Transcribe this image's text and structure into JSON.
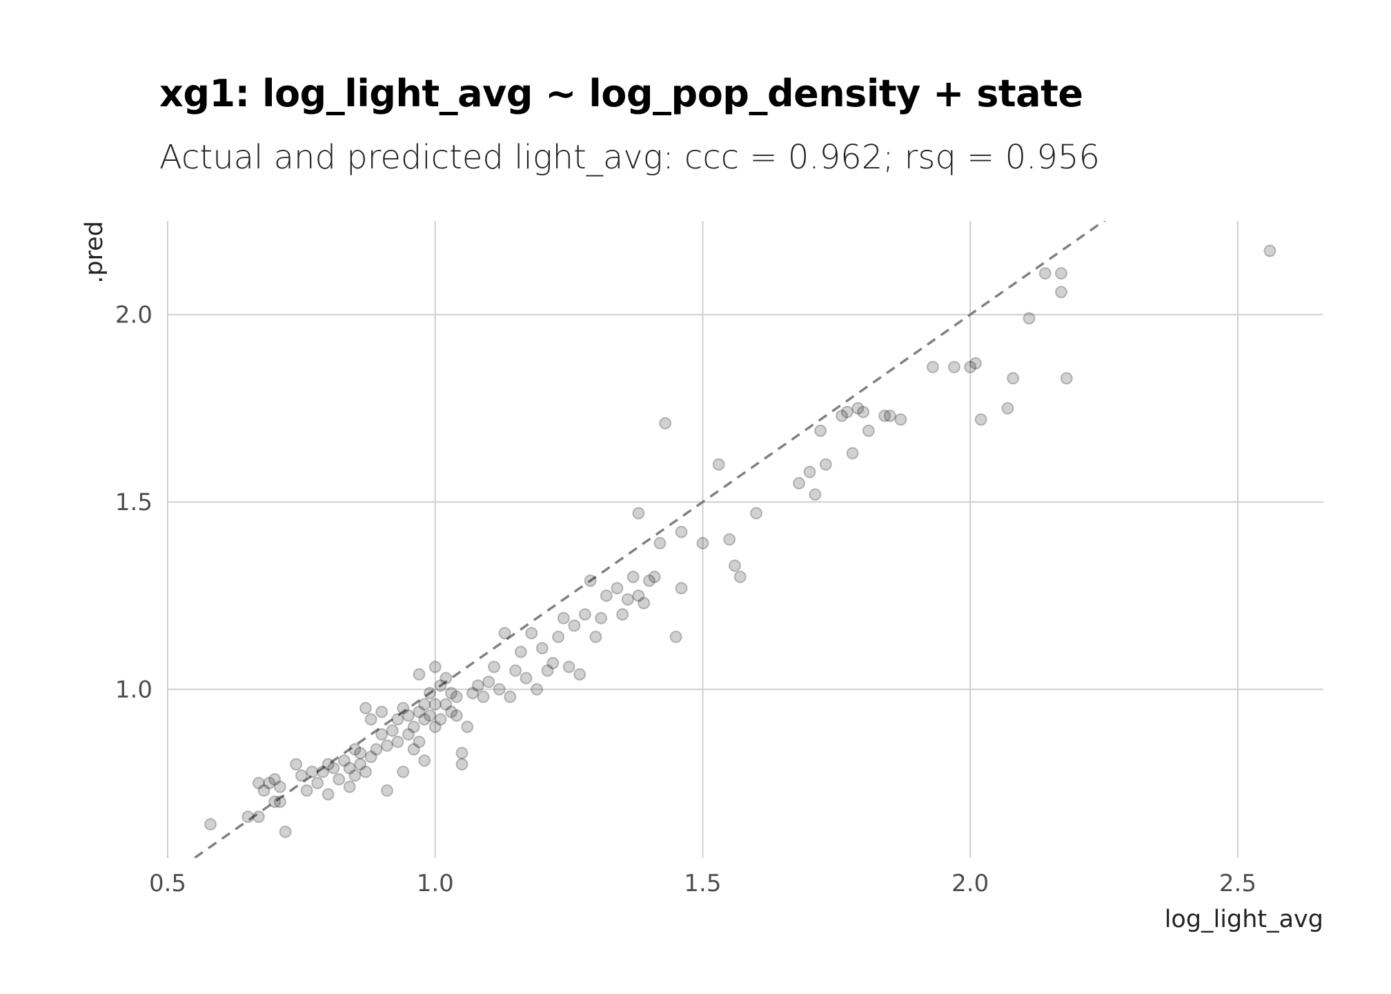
{
  "chart_data": {
    "type": "scatter",
    "title": "xg1: log_light_avg ~ log_pop_density + state",
    "subtitle": "Actual and predicted light_avg: ccc = 0.962; rsq = 0.956",
    "xlabel": "log_light_avg",
    "ylabel": ".pred",
    "xlim": [
      0.5,
      2.66
    ],
    "ylim": [
      0.55,
      2.25
    ],
    "x_ticks": [
      "0.5",
      "1.0",
      "1.5",
      "2.0",
      "2.5"
    ],
    "y_ticks": [
      "1.0",
      "1.5",
      "2.0"
    ],
    "grid": true,
    "reference_line": {
      "slope": 1,
      "intercept": 0,
      "style": "dashed",
      "color": "#808080"
    },
    "point_color": "#000000",
    "point_alpha": 0.18,
    "points": [
      [
        0.58,
        0.64
      ],
      [
        0.65,
        0.66
      ],
      [
        0.67,
        0.75
      ],
      [
        0.67,
        0.66
      ],
      [
        0.68,
        0.73
      ],
      [
        0.69,
        0.75
      ],
      [
        0.7,
        0.76
      ],
      [
        0.7,
        0.7
      ],
      [
        0.71,
        0.74
      ],
      [
        0.71,
        0.7
      ],
      [
        0.72,
        0.62
      ],
      [
        0.74,
        0.8
      ],
      [
        0.75,
        0.77
      ],
      [
        0.76,
        0.73
      ],
      [
        0.77,
        0.78
      ],
      [
        0.78,
        0.75
      ],
      [
        0.79,
        0.78
      ],
      [
        0.8,
        0.8
      ],
      [
        0.8,
        0.72
      ],
      [
        0.81,
        0.79
      ],
      [
        0.82,
        0.76
      ],
      [
        0.83,
        0.81
      ],
      [
        0.84,
        0.79
      ],
      [
        0.84,
        0.74
      ],
      [
        0.85,
        0.77
      ],
      [
        0.85,
        0.84
      ],
      [
        0.86,
        0.83
      ],
      [
        0.86,
        0.8
      ],
      [
        0.87,
        0.78
      ],
      [
        0.87,
        0.95
      ],
      [
        0.88,
        0.92
      ],
      [
        0.88,
        0.82
      ],
      [
        0.89,
        0.84
      ],
      [
        0.9,
        0.94
      ],
      [
        0.9,
        0.88
      ],
      [
        0.91,
        0.73
      ],
      [
        0.91,
        0.85
      ],
      [
        0.92,
        0.89
      ],
      [
        0.93,
        0.92
      ],
      [
        0.93,
        0.86
      ],
      [
        0.94,
        0.95
      ],
      [
        0.94,
        0.78
      ],
      [
        0.95,
        0.88
      ],
      [
        0.95,
        0.93
      ],
      [
        0.96,
        0.9
      ],
      [
        0.96,
        0.84
      ],
      [
        0.97,
        0.94
      ],
      [
        0.97,
        0.86
      ],
      [
        0.97,
        1.04
      ],
      [
        0.98,
        0.92
      ],
      [
        0.98,
        0.96
      ],
      [
        0.98,
        0.81
      ],
      [
        0.99,
        0.99
      ],
      [
        0.99,
        0.93
      ],
      [
        1.0,
        1.06
      ],
      [
        1.0,
        0.9
      ],
      [
        1.0,
        0.96
      ],
      [
        1.01,
        1.01
      ],
      [
        1.01,
        0.92
      ],
      [
        1.02,
        0.96
      ],
      [
        1.02,
        1.03
      ],
      [
        1.03,
        0.94
      ],
      [
        1.03,
        0.99
      ],
      [
        1.04,
        0.93
      ],
      [
        1.04,
        0.98
      ],
      [
        1.05,
        0.8
      ],
      [
        1.05,
        0.83
      ],
      [
        1.06,
        0.9
      ],
      [
        1.07,
        0.99
      ],
      [
        1.08,
        1.01
      ],
      [
        1.09,
        0.98
      ],
      [
        1.1,
        1.02
      ],
      [
        1.11,
        1.06
      ],
      [
        1.12,
        1.0
      ],
      [
        1.13,
        1.15
      ],
      [
        1.14,
        0.98
      ],
      [
        1.15,
        1.05
      ],
      [
        1.16,
        1.1
      ],
      [
        1.17,
        1.03
      ],
      [
        1.18,
        1.15
      ],
      [
        1.19,
        1.0
      ],
      [
        1.2,
        1.11
      ],
      [
        1.21,
        1.05
      ],
      [
        1.22,
        1.07
      ],
      [
        1.23,
        1.14
      ],
      [
        1.24,
        1.19
      ],
      [
        1.25,
        1.06
      ],
      [
        1.26,
        1.17
      ],
      [
        1.27,
        1.04
      ],
      [
        1.28,
        1.2
      ],
      [
        1.29,
        1.29
      ],
      [
        1.3,
        1.14
      ],
      [
        1.31,
        1.19
      ],
      [
        1.32,
        1.25
      ],
      [
        1.34,
        1.27
      ],
      [
        1.35,
        1.2
      ],
      [
        1.36,
        1.24
      ],
      [
        1.37,
        1.3
      ],
      [
        1.38,
        1.25
      ],
      [
        1.38,
        1.47
      ],
      [
        1.39,
        1.23
      ],
      [
        1.4,
        1.29
      ],
      [
        1.41,
        1.3
      ],
      [
        1.42,
        1.39
      ],
      [
        1.43,
        1.71
      ],
      [
        1.45,
        1.14
      ],
      [
        1.46,
        1.27
      ],
      [
        1.46,
        1.42
      ],
      [
        1.5,
        1.39
      ],
      [
        1.53,
        1.6
      ],
      [
        1.55,
        1.4
      ],
      [
        1.56,
        1.33
      ],
      [
        1.57,
        1.3
      ],
      [
        1.6,
        1.47
      ],
      [
        1.68,
        1.55
      ],
      [
        1.7,
        1.58
      ],
      [
        1.71,
        1.52
      ],
      [
        1.72,
        1.69
      ],
      [
        1.73,
        1.6
      ],
      [
        1.76,
        1.73
      ],
      [
        1.77,
        1.74
      ],
      [
        1.78,
        1.63
      ],
      [
        1.79,
        1.75
      ],
      [
        1.8,
        1.74
      ],
      [
        1.81,
        1.69
      ],
      [
        1.84,
        1.73
      ],
      [
        1.85,
        1.73
      ],
      [
        1.87,
        1.72
      ],
      [
        1.93,
        1.86
      ],
      [
        1.97,
        1.86
      ],
      [
        2.0,
        1.86
      ],
      [
        2.01,
        1.87
      ],
      [
        2.02,
        1.72
      ],
      [
        2.07,
        1.75
      ],
      [
        2.08,
        1.83
      ],
      [
        2.11,
        1.99
      ],
      [
        2.14,
        2.11
      ],
      [
        2.17,
        2.06
      ],
      [
        2.17,
        2.11
      ],
      [
        2.18,
        1.83
      ],
      [
        2.56,
        2.17
      ]
    ]
  }
}
